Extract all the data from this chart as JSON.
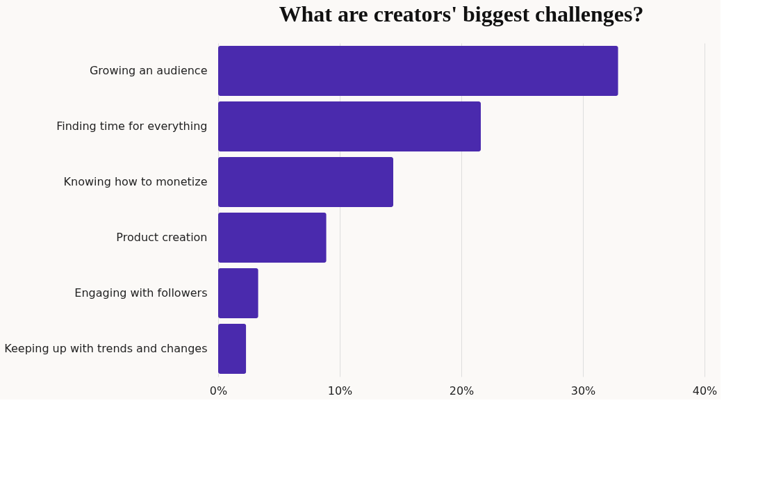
{
  "chart_data": {
    "type": "bar",
    "orientation": "horizontal",
    "title": "What are creators' biggest challenges?",
    "categories": [
      "Growing an audience",
      "Finding time for everything",
      "Knowing how to monetize",
      "Product creation",
      "Engaging with followers",
      "Keeping up with trends and changes"
    ],
    "values": [
      32.9,
      21.6,
      14.4,
      8.9,
      3.3,
      2.3
    ],
    "color": "#4a2aad",
    "xlim": [
      0,
      40
    ],
    "xticks": [
      {
        "value": 0,
        "label": "0%"
      },
      {
        "value": 10,
        "label": "10%"
      },
      {
        "value": 20,
        "label": "20%"
      },
      {
        "value": 30,
        "label": "30%"
      },
      {
        "value": 40,
        "label": "40%"
      }
    ],
    "grid": "x"
  }
}
